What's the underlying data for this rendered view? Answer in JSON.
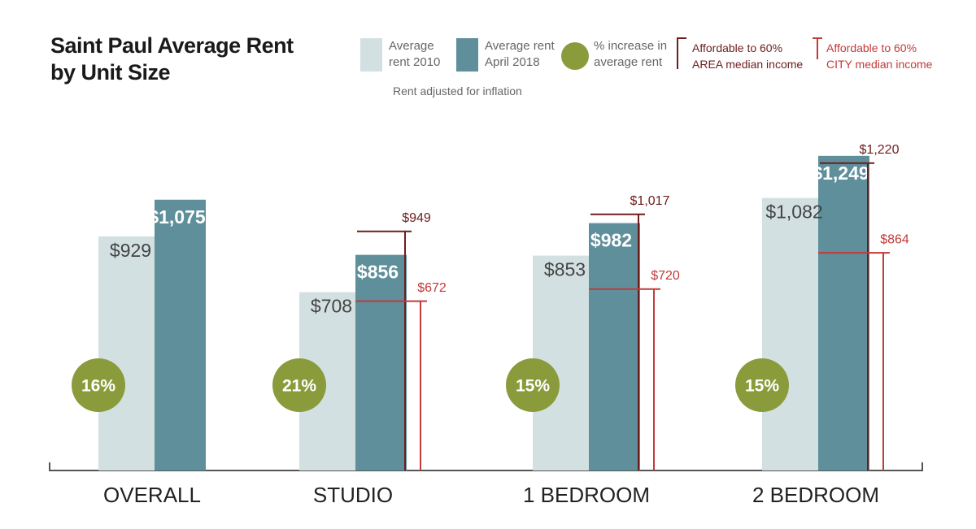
{
  "chart_data": {
    "type": "bar",
    "title": "Saint Paul Average Rent by Unit Size",
    "note": "Rent adjusted for inflation",
    "categories": [
      "OVERALL",
      "STUDIO",
      "1 BEDROOM",
      "2 BEDROOM"
    ],
    "series": [
      {
        "name": "Average rent 2010",
        "color": "#d3e0e1",
        "values": [
          929,
          708,
          853,
          1082
        ],
        "value_labels": [
          "$929",
          "$708",
          "$853",
          "$1,082"
        ]
      },
      {
        "name": "Average rent April 2018",
        "color": "#5e8f9b",
        "values": [
          1075,
          856,
          982,
          1249
        ],
        "value_labels": [
          "$1,075",
          "$856",
          "$982",
          "$1,249"
        ]
      }
    ],
    "increase": {
      "name": "% increase in average rent",
      "color": "#8a9b3b",
      "values": [
        16,
        21,
        15,
        15
      ],
      "value_labels": [
        "16%",
        "21%",
        "15%",
        "15%"
      ]
    },
    "thresholds": [
      {
        "name": "Affordable to 60% AREA median income",
        "color": "#6e1d1d",
        "values": [
          null,
          949,
          1017,
          1220
        ],
        "value_labels": [
          null,
          "$949",
          "$1,017",
          "$1,220"
        ]
      },
      {
        "name": "Affordable to 60% CITY median income",
        "color": "#c23a3a",
        "values": [
          null,
          672,
          720,
          864
        ],
        "value_labels": [
          null,
          "$672",
          "$720",
          "$864"
        ]
      }
    ]
  }
}
